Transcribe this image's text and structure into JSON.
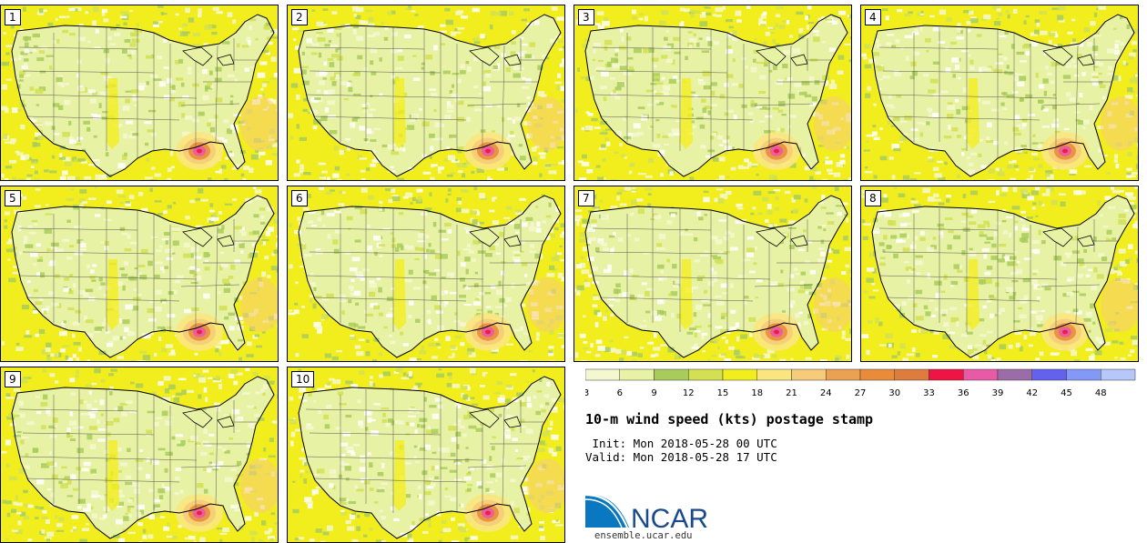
{
  "panels": [
    {
      "label": "1"
    },
    {
      "label": "2"
    },
    {
      "label": "3"
    },
    {
      "label": "4"
    },
    {
      "label": "5"
    },
    {
      "label": "6"
    },
    {
      "label": "7"
    },
    {
      "label": "8"
    },
    {
      "label": "9"
    },
    {
      "label": "10"
    }
  ],
  "colorbar": {
    "colors": [
      "#f4f8d0",
      "#e8f2a4",
      "#a8cc5c",
      "#d2e052",
      "#f2ee1e",
      "#fae680",
      "#f6cc7a",
      "#eaa252",
      "#e88c3a",
      "#de7c3e",
      "#ee1444",
      "#e85aa6",
      "#9c6ca8",
      "#6262ee",
      "#8498f6",
      "#b6c8fa"
    ],
    "tick_labels": [
      "3",
      "6",
      "9",
      "12",
      "15",
      "18",
      "21",
      "24",
      "27",
      "30",
      "33",
      "36",
      "39",
      "42",
      "45",
      "48"
    ]
  },
  "title": "10-m wind speed (kts) postage stamp",
  "init": " Init: Mon 2018-05-28 00 UTC",
  "valid": "Valid: Mon 2018-05-28 17 UTC",
  "logo": {
    "text": "NCAR",
    "url": "ensemble.ucar.edu",
    "color": "#1a4a8c"
  }
}
